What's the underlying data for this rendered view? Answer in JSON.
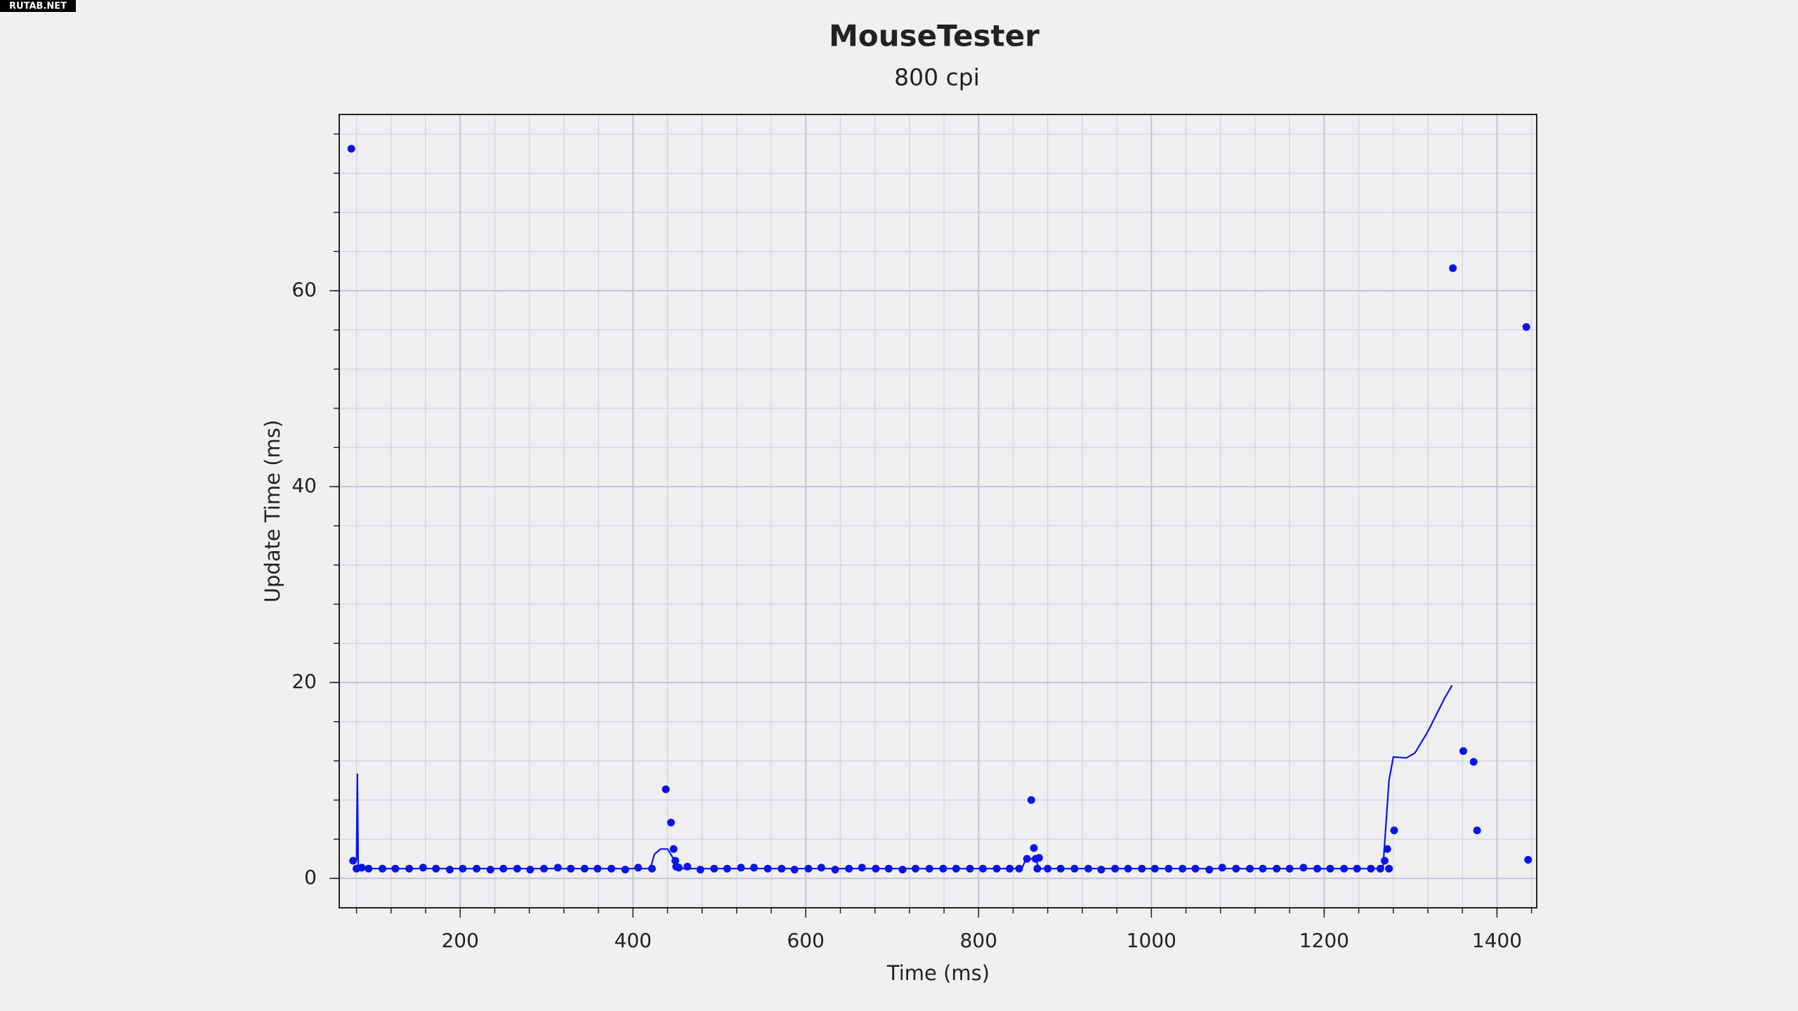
{
  "watermark": "RUTAB.NET",
  "chart_data": {
    "type": "scatter",
    "title": "MouseTester",
    "subtitle": "800 cpi",
    "x_label": "Time (ms)",
    "y_label": "Update Time (ms)",
    "xlim": [
      60,
      1446
    ],
    "ylim": [
      -3,
      78
    ],
    "xticks": [
      200,
      400,
      600,
      800,
      1000,
      1200,
      1400
    ],
    "yticks": [
      0,
      20,
      40,
      60
    ],
    "grid": true,
    "series": [
      {
        "mode": "markers",
        "color": "#0a14e6",
        "x": [
          74,
          76,
          80,
          86,
          94,
          110,
          125,
          141,
          157,
          172,
          188,
          203,
          219,
          235,
          250,
          266,
          281,
          297,
          313,
          328,
          344,
          359,
          375,
          391,
          406,
          422,
          438,
          444,
          447,
          449,
          450,
          453,
          463,
          478,
          494,
          509,
          525,
          540,
          556,
          572,
          587,
          603,
          618,
          634,
          650,
          665,
          681,
          696,
          712,
          727,
          743,
          759,
          774,
          790,
          805,
          821,
          836,
          847,
          856,
          861,
          864,
          866,
          868,
          870,
          880,
          895,
          911,
          927,
          942,
          958,
          973,
          989,
          1004,
          1020,
          1036,
          1051,
          1067,
          1082,
          1098,
          1114,
          1129,
          1145,
          1160,
          1176,
          1192,
          1207,
          1223,
          1238,
          1254,
          1265,
          1270,
          1273,
          1275,
          1281,
          1349,
          1361,
          1373,
          1377,
          1434,
          1436
        ],
        "values": [
          74.5,
          1.8,
          1,
          1.1,
          1,
          1,
          1,
          1,
          1.1,
          1,
          0.9,
          1,
          1,
          0.9,
          1,
          1,
          0.9,
          1,
          1.1,
          1,
          1,
          1,
          1,
          0.9,
          1.1,
          1,
          9.1,
          5.7,
          3,
          1.8,
          1.2,
          1.1,
          1.2,
          0.9,
          1,
          1,
          1.1,
          1.1,
          1,
          1,
          0.9,
          1,
          1.1,
          0.9,
          1,
          1.1,
          1,
          1,
          0.9,
          1,
          1,
          1,
          1,
          1,
          1,
          1,
          1,
          1,
          2,
          8,
          3.1,
          2,
          1,
          2.1,
          1,
          1,
          1,
          1,
          0.9,
          1,
          1,
          1,
          1,
          1,
          1,
          1,
          0.9,
          1.1,
          1,
          1,
          1,
          1,
          1,
          1.1,
          1,
          1,
          1,
          1,
          1,
          1,
          1.8,
          3,
          1,
          4.9,
          62.3,
          13,
          11.9,
          4.9,
          56.3,
          1.9
        ]
      },
      {
        "mode": "line",
        "color": "#0a14e6",
        "x": [
          80,
          81,
          82,
          86,
          420,
          425,
          432,
          440,
          447,
          452,
          850,
          855,
          866,
          870,
          1268,
          1275,
          1280,
          1295,
          1305,
          1320,
          1340,
          1348
        ],
        "values": [
          1.8,
          10.7,
          1.2,
          1,
          1,
          2.5,
          3,
          3,
          2,
          1,
          1,
          2,
          2,
          1,
          1,
          10,
          12.4,
          12.3,
          12.8,
          15,
          18.5,
          19.7
        ]
      }
    ]
  }
}
